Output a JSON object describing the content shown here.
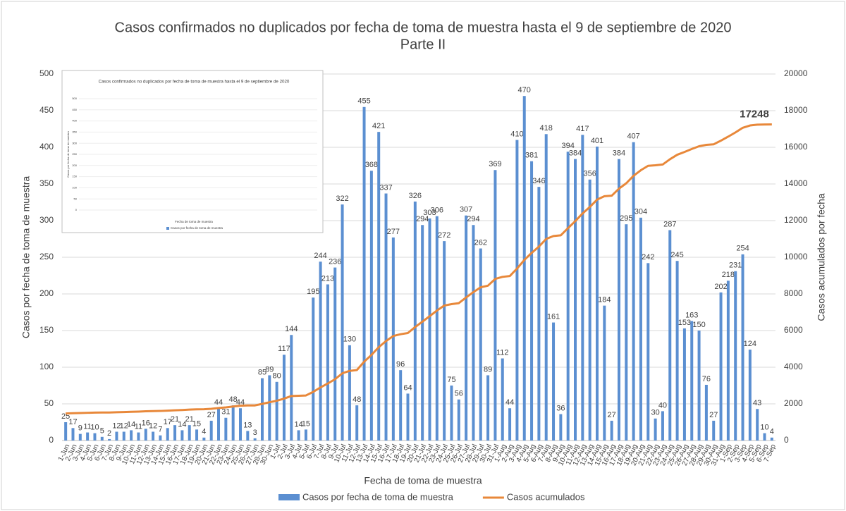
{
  "chart_data": [
    {
      "type": "bar_line",
      "title": "Casos confirmados no duplicados por fecha de toma de muestra hasta el 9 de septiembre de 2020",
      "subtitle": "Parte II",
      "xlabel": "Fecha de toma de muestra",
      "ylabel": "Casos por fecha de toma de muestra",
      "y2label": "Casos acumulados por fecha",
      "categories": [
        "1-Jun",
        "2-Jun",
        "3-Jun",
        "4-Jun",
        "5-Jun",
        "6-Jun",
        "7-Jun",
        "8-Jun",
        "9-Jun",
        "10-Jun",
        "11-Jun",
        "12-Jun",
        "13-Jun",
        "14-Jun",
        "15-Jun",
        "16-Jun",
        "17-Jun",
        "18-Jun",
        "19-Jun",
        "20-Jun",
        "21-Jun",
        "22-Jun",
        "23-Jun",
        "24-Jun",
        "25-Jun",
        "26-Jun",
        "27-Jun",
        "28-Jun",
        "30-Jun",
        "1-Jul",
        "2-Jul",
        "3-Jul",
        "4-Jul",
        "5-Jul",
        "6-Jul",
        "7-Jul",
        "8-Jul",
        "9-Jul",
        "10-Jul",
        "11-Jul",
        "12-Jul",
        "13-Jul",
        "14-Jul",
        "15-Jul",
        "16-Jul",
        "17-Jul",
        "18-Jul",
        "19-Jul",
        "20-Jul",
        "21-Jul",
        "22-Jul",
        "23-Jul",
        "24-Jul",
        "25-Jul",
        "26-Jul",
        "27-Jul",
        "28-Jul",
        "29-Jul",
        "30-Jul",
        "31-Jul",
        "1-Aug",
        "2-Aug",
        "3-Aug",
        "4-Aug",
        "5-Aug",
        "6-Aug",
        "7-Aug",
        "8-Aug",
        "9-Aug",
        "10-Aug",
        "11-Aug",
        "12-Aug",
        "13-Aug",
        "14-Aug",
        "15-Aug",
        "16-Aug",
        "17-Aug",
        "18-Aug",
        "19-Aug",
        "20-Aug",
        "21-Aug",
        "22-Aug",
        "23-Aug",
        "24-Aug",
        "25-Aug",
        "26-Aug",
        "27-Aug",
        "28-Aug",
        "29-Aug",
        "30-Aug",
        "31-Aug",
        "1-Sep",
        "2-Sep",
        "3-Sep",
        "4-Sep",
        "5-Sep",
        "6-Sep",
        "7-Sep"
      ],
      "series": [
        {
          "name": "Casos por fecha de toma de muestra",
          "color": "#5b8fd1",
          "type": "bar",
          "values": [
            25,
            17,
            9,
            11,
            10,
            5,
            2,
            12,
            12,
            14,
            11,
            16,
            12,
            7,
            17,
            21,
            14,
            21,
            15,
            4,
            27,
            44,
            31,
            48,
            44,
            13,
            3,
            85,
            89,
            80,
            117,
            144,
            14,
            15,
            195,
            244,
            213,
            236,
            322,
            130,
            48,
            455,
            368,
            421,
            337,
            277,
            96,
            64,
            326,
            294,
            303,
            306,
            272,
            75,
            56,
            307,
            294,
            262,
            89,
            369,
            112,
            44,
            410,
            470,
            381,
            346,
            418,
            161,
            36,
            394,
            384,
            417,
            356,
            401,
            184,
            27,
            384,
            295,
            407,
            304,
            242,
            30,
            40,
            287,
            245,
            153,
            163,
            150,
            76,
            27,
            202,
            218,
            231,
            254,
            124,
            43,
            10,
            4
          ]
        },
        {
          "name": "Casos acumulados",
          "color": "#e8883a",
          "type": "line",
          "axis": "y2",
          "values": [
            1475,
            1492,
            1501,
            1512,
            1522,
            1527,
            1529,
            1541,
            1553,
            1567,
            1578,
            1594,
            1606,
            1613,
            1630,
            1651,
            1665,
            1686,
            1701,
            1705,
            1732,
            1776,
            1807,
            1855,
            1899,
            1912,
            1915,
            2000,
            2089,
            2169,
            2286,
            2430,
            2444,
            2459,
            2654,
            2898,
            3111,
            3347,
            3669,
            3799,
            3847,
            4302,
            4670,
            5091,
            5428,
            5705,
            5801,
            5865,
            6191,
            6485,
            6788,
            7094,
            7366,
            7441,
            7497,
            7804,
            8098,
            8360,
            8449,
            8818,
            8930,
            8974,
            9384,
            9854,
            10235,
            10581,
            10999,
            11160,
            11196,
            11590,
            11974,
            12391,
            12747,
            13148,
            13332,
            13359,
            13743,
            14038,
            14445,
            14749,
            14991,
            15021,
            15061,
            15348,
            15593,
            15746,
            15909,
            16059,
            16135,
            16162,
            16364,
            16582,
            16813,
            17067,
            17191,
            17234,
            17244,
            17248
          ]
        }
      ],
      "ylim": [
        0,
        500
      ],
      "yticks": [
        0,
        50,
        100,
        150,
        200,
        250,
        300,
        350,
        400,
        450,
        500
      ],
      "y2lim": [
        0,
        20000
      ],
      "y2ticks": [
        0,
        2000,
        4000,
        6000,
        8000,
        10000,
        12000,
        14000,
        16000,
        18000,
        20000
      ],
      "grid": true,
      "legend": "bottom"
    },
    {
      "type": "bar",
      "title": "Casos confirmados no duplicados por fecha de toma de muestra hasta el 9 de septiembre de 2020",
      "xlabel": "Fecha de toma de muestra",
      "ylabel": "Casos por fecha de toma de muestra",
      "series": [
        {
          "name": "Casos por fecha de toma de muestra",
          "color": "#5b8fd1"
        }
      ],
      "ylim": [
        0,
        500
      ],
      "yticks": [
        0,
        50,
        100,
        150,
        200,
        250,
        300,
        350,
        400,
        450,
        500
      ],
      "grid": true,
      "legend": "bottom"
    }
  ]
}
